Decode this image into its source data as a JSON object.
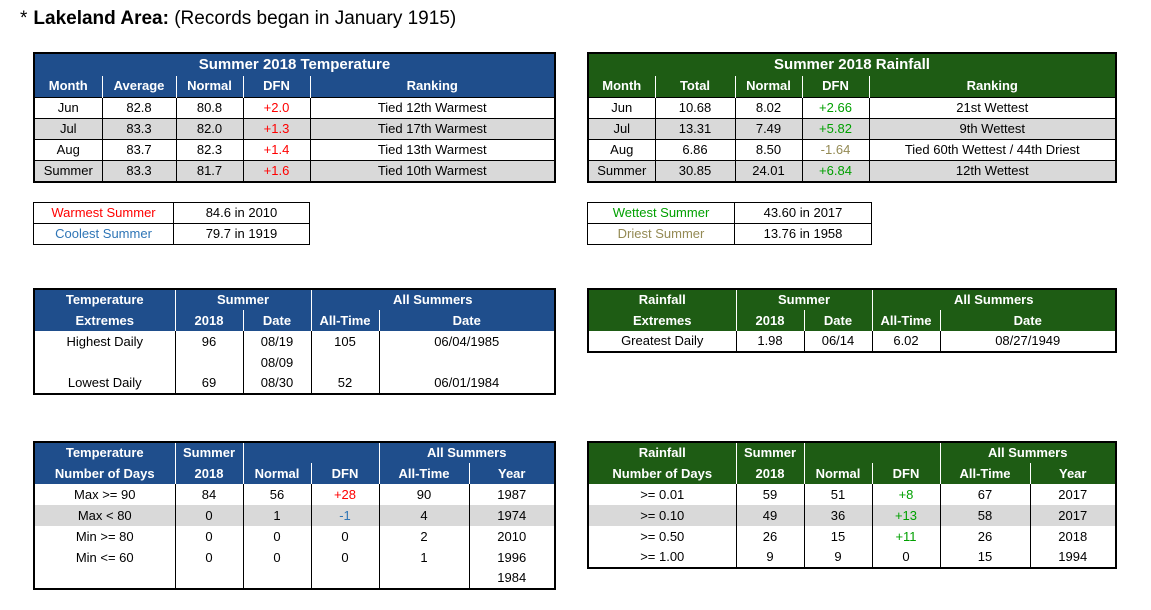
{
  "page": {
    "star": "*",
    "title": "Lakeland Area:",
    "subtitle": "(Records began in January 1915)"
  },
  "temp_summary": {
    "title": "Summer 2018 Temperature",
    "headers": [
      "Month",
      "Average",
      "Normal",
      "DFN",
      "Ranking"
    ],
    "rows": [
      {
        "month": "Jun",
        "avg": "82.8",
        "normal": "80.8",
        "dfn": "+2.0",
        "rank": "Tied 12th Warmest"
      },
      {
        "month": "Jul",
        "avg": "83.3",
        "normal": "82.0",
        "dfn": "+1.3",
        "rank": "Tied 17th Warmest"
      },
      {
        "month": "Aug",
        "avg": "83.7",
        "normal": "82.3",
        "dfn": "+1.4",
        "rank": "Tied 13th Warmest"
      },
      {
        "month": "Summer",
        "avg": "83.3",
        "normal": "81.7",
        "dfn": "+1.6",
        "rank": "Tied 10th Warmest"
      }
    ]
  },
  "rain_summary": {
    "title": "Summer 2018 Rainfall",
    "headers": [
      "Month",
      "Total",
      "Normal",
      "DFN",
      "Ranking"
    ],
    "rows": [
      {
        "month": "Jun",
        "total": "10.68",
        "normal": "8.02",
        "dfn": "+2.66",
        "rank": "21st Wettest"
      },
      {
        "month": "Jul",
        "total": "13.31",
        "normal": "7.49",
        "dfn": "+5.82",
        "rank": "9th Wettest"
      },
      {
        "month": "Aug",
        "total": "6.86",
        "normal": "8.50",
        "dfn": "-1.64",
        "rank": "Tied 60th Wettest / 44th Driest"
      },
      {
        "month": "Summer",
        "total": "30.85",
        "normal": "24.01",
        "dfn": "+6.84",
        "rank": "12th Wettest"
      }
    ]
  },
  "temp_records": {
    "warmest_label": "Warmest Summer",
    "warmest_value": "84.6 in 2010",
    "coolest_label": "Coolest Summer",
    "coolest_value": "79.7 in 1919"
  },
  "rain_records": {
    "wettest_label": "Wettest Summer",
    "wettest_value": "43.60 in 2017",
    "driest_label": "Driest Summer",
    "driest_value": "13.76 in 1958"
  },
  "temp_extremes": {
    "h1": "Temperature",
    "h2": "Extremes",
    "summer": "Summer",
    "y2018": "2018",
    "date": "Date",
    "all_summers": "All Summers",
    "all_time": "All-Time",
    "all_date": "Date",
    "highest_label": "Highest Daily",
    "highest_value": "96",
    "highest_date": "08/19",
    "highest_date2": "08/09",
    "highest_alltime": "105",
    "highest_alldate": "06/04/1985",
    "lowest_label": "Lowest Daily",
    "lowest_value": "69",
    "lowest_date": "08/30",
    "lowest_alltime": "52",
    "lowest_alldate": "06/01/1984"
  },
  "rain_extremes": {
    "h1": "Rainfall",
    "h2": "Extremes",
    "summer": "Summer",
    "y2018": "2018",
    "date": "Date",
    "all_summers": "All Summers",
    "all_time": "All-Time",
    "all_date": "Date",
    "greatest_label": "Greatest Daily",
    "greatest_value": "1.98",
    "greatest_date": "06/14",
    "greatest_alltime": "6.02",
    "greatest_alldate": "08/27/1949"
  },
  "temp_days": {
    "h1": "Temperature",
    "h2": "Number of Days",
    "summer": "Summer",
    "y2018": "2018",
    "normal": "Normal",
    "dfn": "DFN",
    "all_summers": "All Summers",
    "all_time": "All-Time",
    "year": "Year",
    "rows": [
      {
        "label": "Max >= 90",
        "v2018": "84",
        "normal": "56",
        "dfn": "+28",
        "alltime": "90",
        "year": "1987"
      },
      {
        "label": "Max < 80",
        "v2018": "0",
        "normal": "1",
        "dfn": "-1",
        "alltime": "4",
        "year": "1974"
      },
      {
        "label": "Min >= 80",
        "v2018": "0",
        "normal": "0",
        "dfn": "0",
        "alltime": "2",
        "year": "2010"
      },
      {
        "label": "Min <= 60",
        "v2018": "0",
        "normal": "0",
        "dfn": "0",
        "alltime": "1",
        "year": "1996"
      }
    ],
    "extra_year": "1984"
  },
  "rain_days": {
    "h1": "Rainfall",
    "h2": "Number of Days",
    "summer": "Summer",
    "y2018": "2018",
    "normal": "Normal",
    "dfn": "DFN",
    "all_summers": "All Summers",
    "all_time": "All-Time",
    "year": "Year",
    "rows": [
      {
        "label": ">= 0.01",
        "v2018": "59",
        "normal": "51",
        "dfn": "+8",
        "alltime": "67",
        "year": "2017"
      },
      {
        "label": ">= 0.10",
        "v2018": "49",
        "normal": "36",
        "dfn": "+13",
        "alltime": "58",
        "year": "2017"
      },
      {
        "label": ">= 0.50",
        "v2018": "26",
        "normal": "15",
        "dfn": "+11",
        "alltime": "26",
        "year": "2018"
      },
      {
        "label": ">= 1.00",
        "v2018": "9",
        "normal": "9",
        "dfn": "0",
        "alltime": "15",
        "year": "1994"
      }
    ]
  },
  "colors": {
    "temp_header": "#1f4e8c",
    "rain_header": "#1e5c14",
    "warm": "#ff0000",
    "cool": "#2e75b6",
    "wet": "#00a000",
    "dry": "#948a54",
    "shade": "#d9d9d9"
  }
}
